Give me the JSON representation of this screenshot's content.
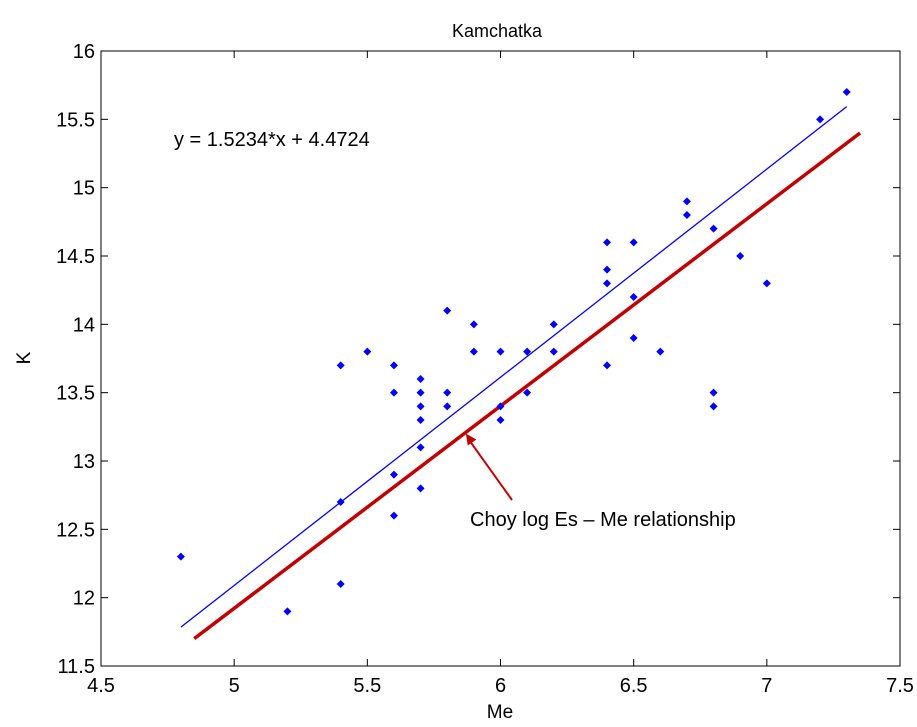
{
  "chart_data": {
    "type": "scatter",
    "title": "Kamchatka",
    "xlabel": "Me",
    "ylabel": "K",
    "xlim": [
      4.5,
      7.5
    ],
    "ylim": [
      11.5,
      16
    ],
    "xticks": [
      "4.5",
      "5",
      "5.5",
      "6",
      "6.5",
      "7",
      "7.5"
    ],
    "yticks": [
      "11.5",
      "12",
      "12.5",
      "13",
      "13.5",
      "14",
      "14.5",
      "15",
      "15.5",
      "16"
    ],
    "grid": false,
    "points_color": "#0000ff",
    "points": [
      [
        4.8,
        12.3
      ],
      [
        5.2,
        11.9
      ],
      [
        5.4,
        13.7
      ],
      [
        5.4,
        12.7
      ],
      [
        5.4,
        12.1
      ],
      [
        5.5,
        13.8
      ],
      [
        5.6,
        13.7
      ],
      [
        5.6,
        13.5
      ],
      [
        5.6,
        12.9
      ],
      [
        5.6,
        12.6
      ],
      [
        5.7,
        13.6
      ],
      [
        5.7,
        13.5
      ],
      [
        5.7,
        13.4
      ],
      [
        5.7,
        13.3
      ],
      [
        5.7,
        13.1
      ],
      [
        5.7,
        12.8
      ],
      [
        5.8,
        14.1
      ],
      [
        5.8,
        13.5
      ],
      [
        5.8,
        13.4
      ],
      [
        5.9,
        14.0
      ],
      [
        5.9,
        13.8
      ],
      [
        6.0,
        13.8
      ],
      [
        6.0,
        13.4
      ],
      [
        6.0,
        13.3
      ],
      [
        6.1,
        13.8
      ],
      [
        6.1,
        13.5
      ],
      [
        6.2,
        14.0
      ],
      [
        6.2,
        13.8
      ],
      [
        6.4,
        14.6
      ],
      [
        6.4,
        14.4
      ],
      [
        6.4,
        14.3
      ],
      [
        6.4,
        13.7
      ],
      [
        6.5,
        14.6
      ],
      [
        6.5,
        14.2
      ],
      [
        6.5,
        13.9
      ],
      [
        6.6,
        13.8
      ],
      [
        6.7,
        14.9
      ],
      [
        6.7,
        14.8
      ],
      [
        6.8,
        14.7
      ],
      [
        6.8,
        13.5
      ],
      [
        6.8,
        13.4
      ],
      [
        6.9,
        14.5
      ],
      [
        7.0,
        14.3
      ],
      [
        7.2,
        15.5
      ],
      [
        7.3,
        15.7
      ]
    ],
    "fit_line": {
      "equation": "y = 1.5234*x + 4.4724",
      "slope": 1.5234,
      "intercept": 4.4724,
      "x_range": [
        4.8,
        7.3
      ],
      "color": "#0000ff"
    },
    "reference_line": {
      "label": "Choy log Es – Me relationship",
      "x": [
        4.85,
        7.35
      ],
      "y": [
        11.7,
        15.4
      ],
      "color": "#c00000"
    },
    "annotation_arrow_target": [
      5.87,
      13.2
    ]
  }
}
